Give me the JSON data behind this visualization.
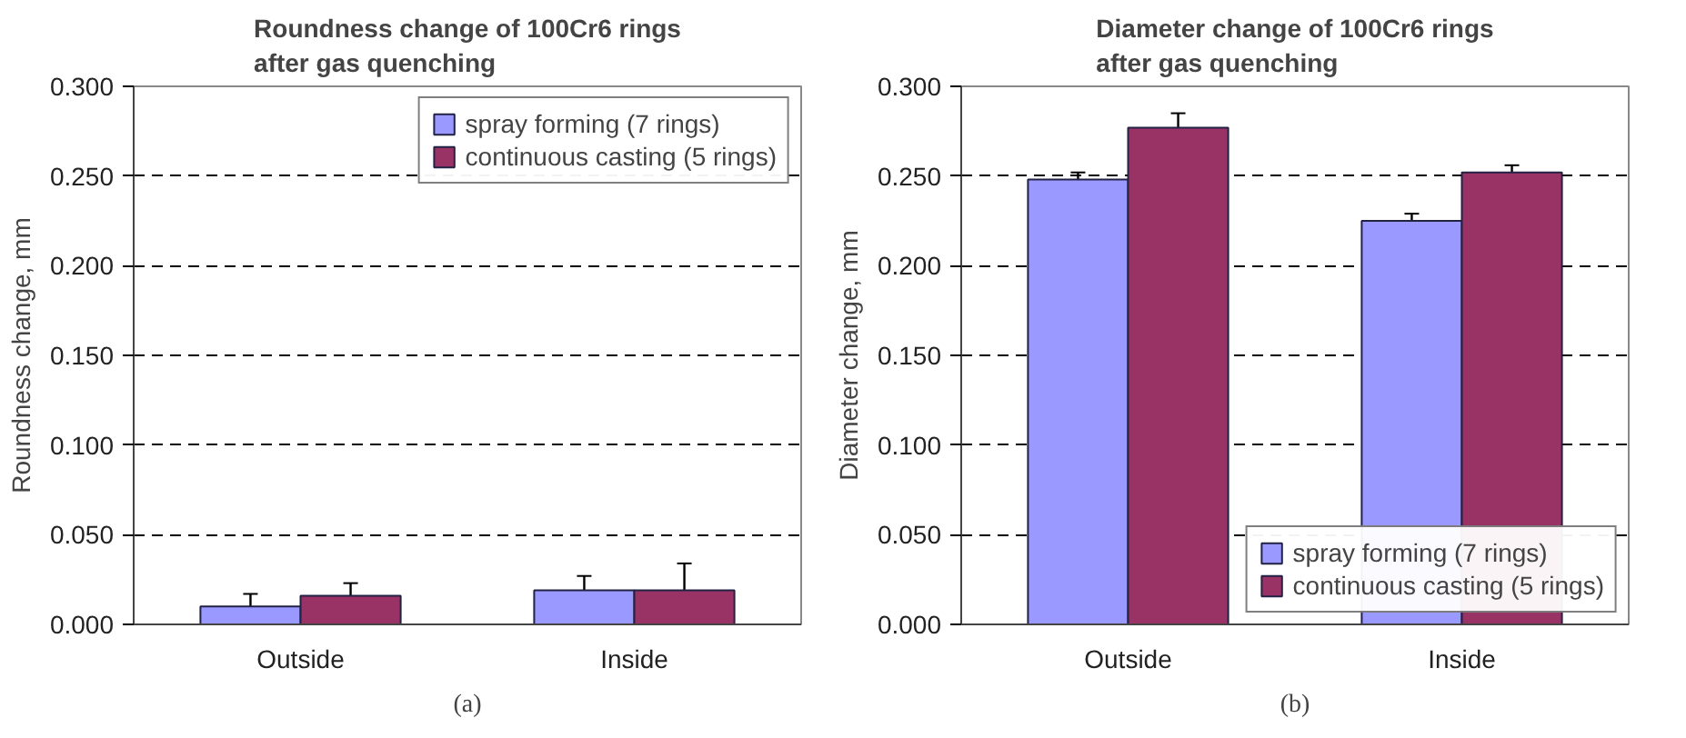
{
  "chart_data": [
    {
      "type": "bar",
      "title": "Roundness change of 100Cr6 rings\nafter gas quenching",
      "ylabel": "Roundness change, mm",
      "categories": [
        "Outside",
        "Inside"
      ],
      "series": [
        {
          "name": "spray forming (7 rings)",
          "color": "#9999ff",
          "values": [
            0.01,
            0.019
          ],
          "errors": [
            0.007,
            0.008
          ]
        },
        {
          "name": "continuous casting (5 rings)",
          "color": "#993366",
          "values": [
            0.016,
            0.019
          ],
          "errors": [
            0.007,
            0.015
          ]
        }
      ],
      "ylim": [
        0,
        0.3
      ],
      "yticks": [
        {
          "value": 0,
          "label": "0.000"
        },
        {
          "value": 0.05,
          "label": "0.050"
        },
        {
          "value": 0.1,
          "label": "0.100"
        },
        {
          "value": 0.15,
          "label": "0.150"
        },
        {
          "value": 0.2,
          "label": "0.200"
        },
        {
          "value": 0.25,
          "label": "0.250"
        },
        {
          "value": 0.3,
          "label": "0.300"
        }
      ],
      "grid": "y",
      "legend": "top right",
      "annotations": [
        "(a)"
      ]
    },
    {
      "type": "bar",
      "title": "Diameter change of 100Cr6 rings\nafter gas quenching",
      "ylabel": "Diameter change, mm",
      "categories": [
        "Outside",
        "Inside"
      ],
      "series": [
        {
          "name": "spray forming (7 rings)",
          "color": "#9999ff",
          "values": [
            0.248,
            0.225
          ],
          "errors": [
            0.004,
            0.004
          ]
        },
        {
          "name": "continuous casting (5 rings)",
          "color": "#993366",
          "values": [
            0.277,
            0.252
          ],
          "errors": [
            0.008,
            0.004
          ]
        }
      ],
      "ylim": [
        0,
        0.3
      ],
      "yticks": [
        {
          "value": 0,
          "label": "0.000"
        },
        {
          "value": 0.05,
          "label": "0.050"
        },
        {
          "value": 0.1,
          "label": "0.100"
        },
        {
          "value": 0.15,
          "label": "0.150"
        },
        {
          "value": 0.2,
          "label": "0.200"
        },
        {
          "value": 0.25,
          "label": "0.250"
        },
        {
          "value": 0.3,
          "label": "0.300"
        }
      ],
      "grid": "y",
      "legend": "bottom right",
      "annotations": [
        "(b)"
      ]
    }
  ]
}
